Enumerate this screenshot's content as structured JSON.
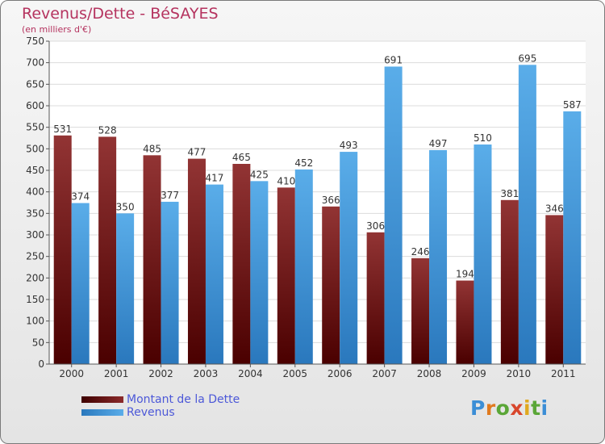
{
  "title": "Revenus/Dette - BéSAYES",
  "subtitle": "(en milliers d'€)",
  "logo": {
    "text": "Proxiti",
    "letter_colors": [
      "#3b8ed6",
      "#e07a1f",
      "#5aa637",
      "#d8462c",
      "#e0a91f",
      "#5aa637",
      "#3b8ed6"
    ]
  },
  "colors": {
    "dette": "#8b1e1e",
    "revenus": "#3f9ee4",
    "title": "#b5335f",
    "legend_text": "#4c58d8"
  },
  "legend": {
    "dette_label": "Montant de la Dette",
    "revenus_label": "Revenus"
  },
  "chart_data": {
    "type": "bar",
    "categories": [
      "2000",
      "2001",
      "2002",
      "2003",
      "2004",
      "2005",
      "2006",
      "2007",
      "2008",
      "2009",
      "2010",
      "2011"
    ],
    "series": [
      {
        "name": "Montant de la Dette",
        "values": [
          531,
          528,
          485,
          477,
          465,
          410,
          366,
          306,
          246,
          194,
          381,
          346
        ]
      },
      {
        "name": "Revenus",
        "values": [
          374,
          350,
          377,
          417,
          425,
          452,
          493,
          691,
          497,
          510,
          695,
          587
        ]
      }
    ],
    "yticks": [
      0,
      50,
      100,
      150,
      200,
      250,
      300,
      350,
      400,
      450,
      500,
      550,
      600,
      650,
      700,
      750
    ],
    "ylim": [
      0,
      750
    ],
    "grid": true,
    "legend_position": "bottom-left"
  }
}
